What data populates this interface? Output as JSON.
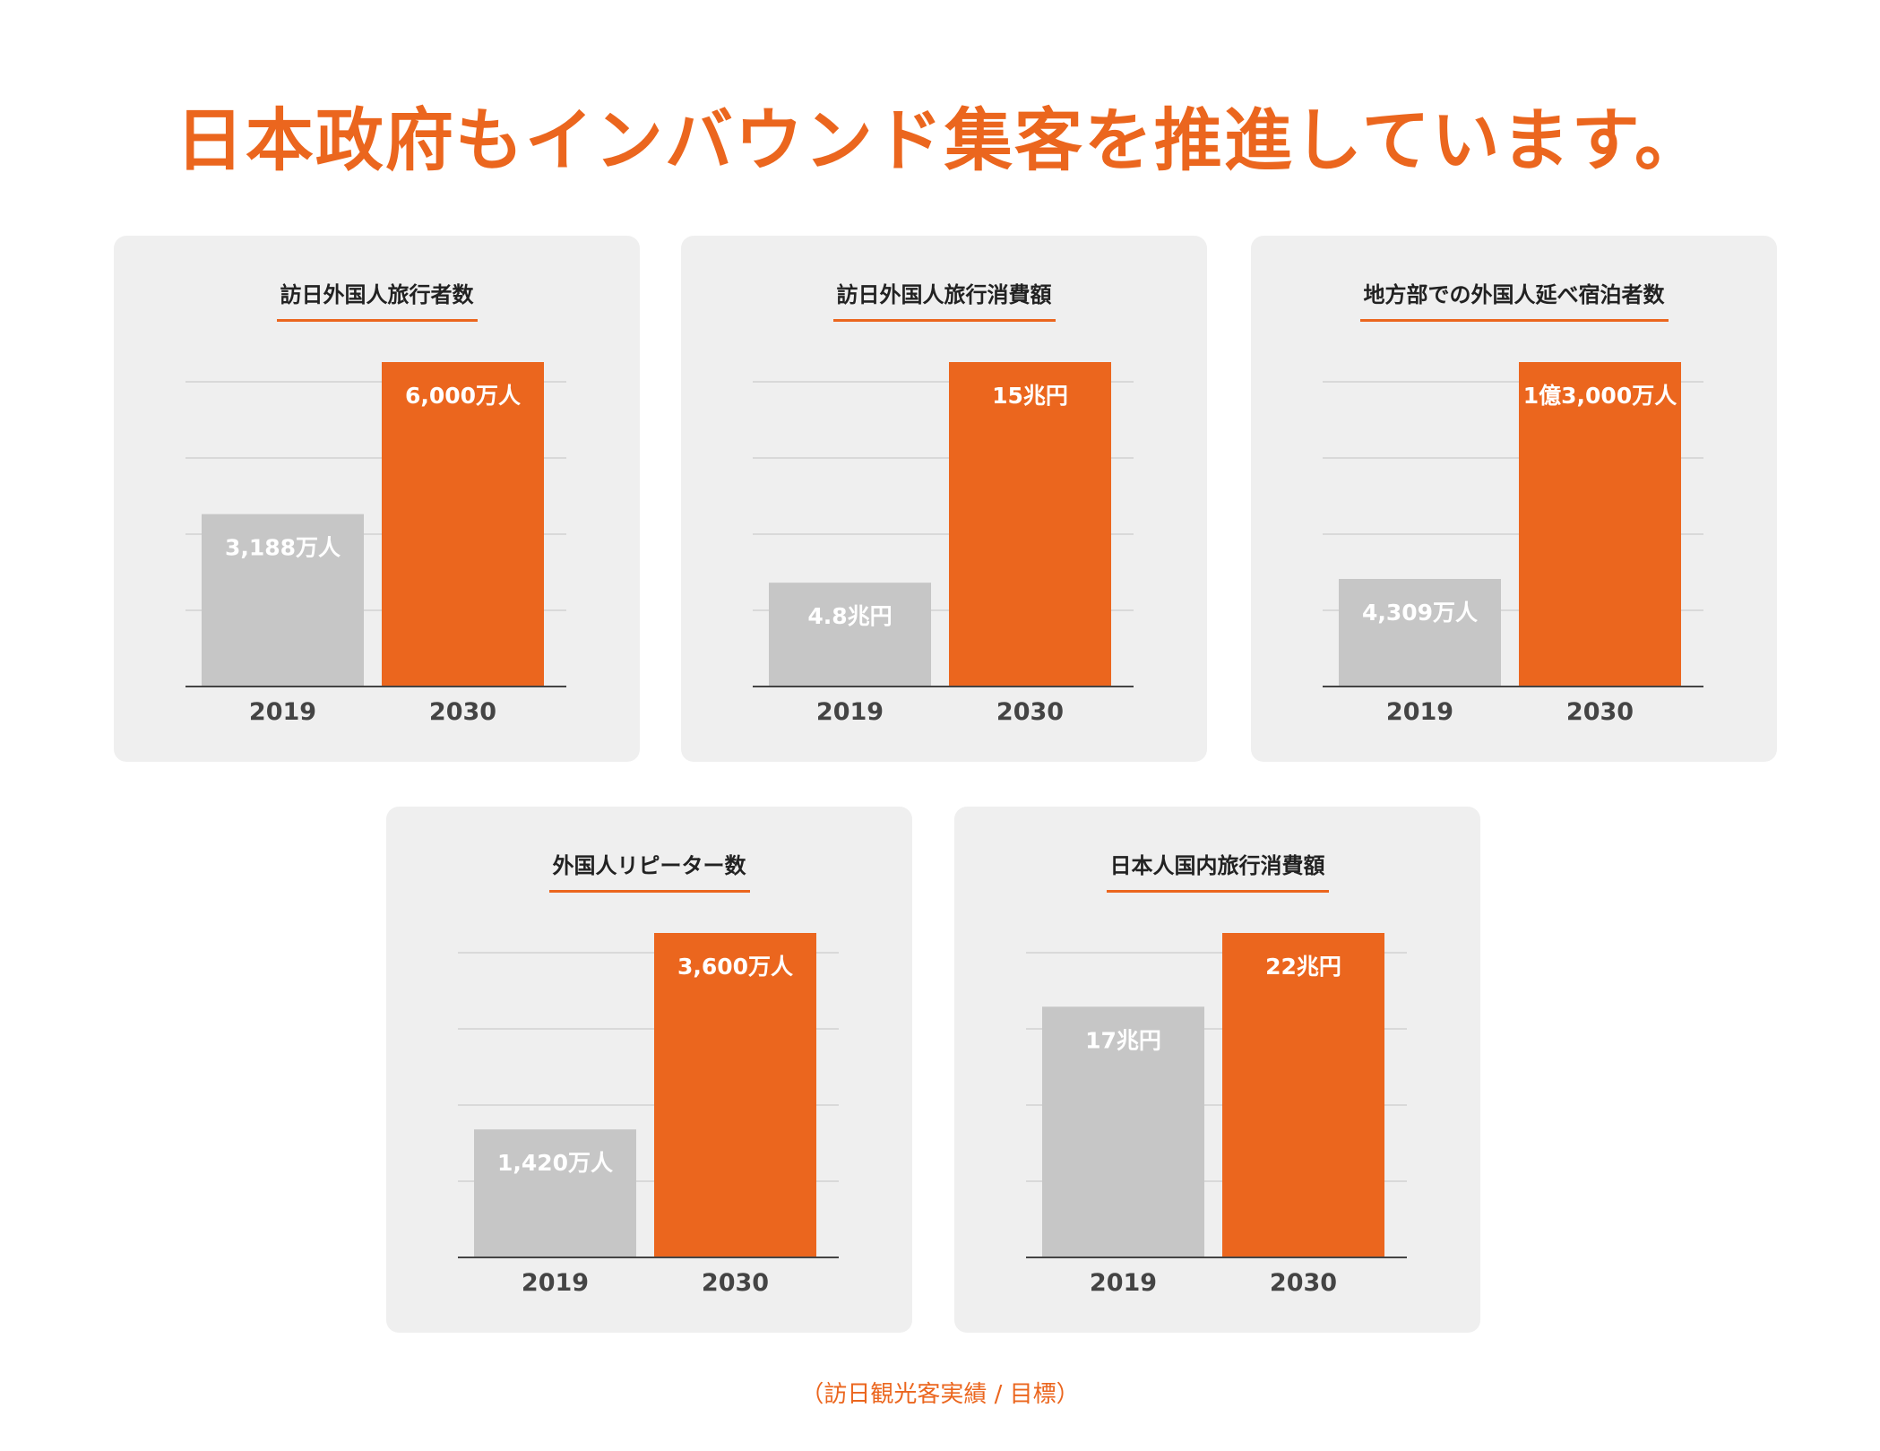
{
  "title": "日本政府もインバウンド集客を推進しています。",
  "source": "（訪日観光客実績 / 目標）",
  "colors": {
    "accent": "#EB661E",
    "actual": "#C6C6C6",
    "card": "#EFEFEF"
  },
  "chart_data": [
    {
      "type": "bar",
      "title": "訪日外国人旅行者数",
      "categories": [
        "2019",
        "2030"
      ],
      "values": [
        3188,
        6000
      ],
      "unit": "万人",
      "labels": [
        "3,188万人",
        "6,000万人"
      ],
      "colors": [
        "#C6C6C6",
        "#EB661E"
      ],
      "grid": true
    },
    {
      "type": "bar",
      "title": "訪日外国人旅行消費額",
      "categories": [
        "2019",
        "2030"
      ],
      "values": [
        4.8,
        15
      ],
      "unit": "兆円",
      "labels": [
        "4.8兆円",
        "15兆円"
      ],
      "colors": [
        "#C6C6C6",
        "#EB661E"
      ],
      "grid": true
    },
    {
      "type": "bar",
      "title": "地方部での外国人延べ宿泊者数",
      "categories": [
        "2019",
        "2030"
      ],
      "values": [
        4309,
        13000
      ],
      "unit": "万人",
      "labels": [
        "4,309万人",
        "1億3,000万人"
      ],
      "colors": [
        "#C6C6C6",
        "#EB661E"
      ],
      "grid": true
    },
    {
      "type": "bar",
      "title": "外国人リピーター数",
      "categories": [
        "2019",
        "2030"
      ],
      "values": [
        1420,
        3600
      ],
      "unit": "万人",
      "labels": [
        "1,420万人",
        "3,600万人"
      ],
      "colors": [
        "#C6C6C6",
        "#EB661E"
      ],
      "grid": true
    },
    {
      "type": "bar",
      "title": "日本人国内旅行消費額",
      "categories": [
        "2019",
        "2030"
      ],
      "values": [
        17,
        22
      ],
      "unit": "兆円",
      "labels": [
        "17兆円",
        "22兆円"
      ],
      "colors": [
        "#C6C6C6",
        "#EB661E"
      ],
      "grid": true
    }
  ]
}
